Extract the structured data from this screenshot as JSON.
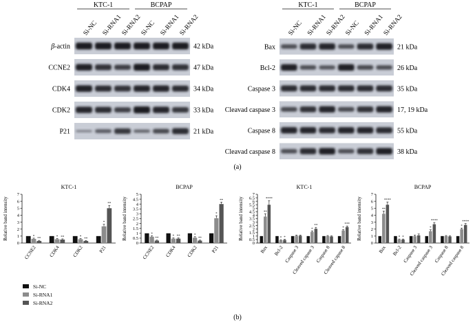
{
  "panel_a": {
    "label": "(a)",
    "left": {
      "groups": [
        "KTC-1",
        "BCPAP"
      ],
      "lanes": [
        "Si-NC",
        "Si-RNA1",
        "Si-RNA2",
        "Si-NC",
        "Si-RNA1",
        "Si-RNA2"
      ],
      "bands": [
        {
          "name": "β-actin",
          "kda": "42 kDa",
          "italic_prefix": true
        },
        {
          "name": "CCNE2",
          "kda": "47 kDa"
        },
        {
          "name": "CDK4",
          "kda": "34 kDa"
        },
        {
          "name": "CDK2",
          "kda": "33 kDa"
        },
        {
          "name": "P21",
          "kda": "21 kDa"
        }
      ]
    },
    "right": {
      "groups": [
        "KTC-1",
        "BCPAP"
      ],
      "lanes": [
        "Si-NC",
        "Si-RNA1",
        "Si-RNA2",
        "Si-NC",
        "Si-RNA1",
        "Si-RNA2"
      ],
      "bands": [
        {
          "name": "Bax",
          "kda": "21 kDa"
        },
        {
          "name": "Bcl-2",
          "kda": "26 kDa"
        },
        {
          "name": "Caspase 3",
          "kda": "35 kDa"
        },
        {
          "name": "Cleavad caspase 3",
          "kda": "17, 19 kDa"
        },
        {
          "name": "Caspase 8",
          "kda": "55 kDa"
        },
        {
          "name": "Cleavad caspase 8",
          "kda": "38 kDa"
        }
      ]
    }
  },
  "panel_b": {
    "label": "(b)",
    "legend": [
      "Si-NC",
      "Si-RNA1",
      "Si-RNA2"
    ]
  },
  "colors": {
    "si_nc": "#111111",
    "si_rna1": "#8c8c8c",
    "si_rna2": "#555555",
    "blot_bg": "#c9cdd6",
    "band": "#1c1c22"
  },
  "chart_data": [
    {
      "type": "bar",
      "title": "KTC-1",
      "ylabel": "Relative band intensity",
      "ylim": [
        0,
        7
      ],
      "yticks": [
        0,
        1,
        2,
        3,
        4,
        5,
        6,
        7
      ],
      "categories": [
        "CCNE2",
        "CDK4",
        "CDK2",
        "P21"
      ],
      "series": [
        {
          "name": "Si-NC",
          "values": [
            1,
            1,
            1,
            1
          ]
        },
        {
          "name": "Si-RNA1",
          "values": [
            0.6,
            0.55,
            0.55,
            2.4
          ]
        },
        {
          "name": "Si-RNA2",
          "values": [
            0.3,
            0.5,
            0.3,
            5.0
          ]
        }
      ],
      "errors": [
        [
          0,
          0,
          0,
          0
        ],
        [
          0.1,
          0.1,
          0.1,
          0.3
        ],
        [
          0.08,
          0.1,
          0.06,
          0.4
        ]
      ],
      "significance": [
        [
          "",
          "",
          "",
          ""
        ],
        [
          "*",
          "*",
          "*",
          "*"
        ],
        [
          "**",
          "**",
          "**",
          "**"
        ]
      ]
    },
    {
      "type": "bar",
      "title": "BCPAP",
      "ylabel": "Relative band intensity",
      "ylim": [
        0,
        5
      ],
      "yticks": [
        0,
        0.5,
        1,
        1.5,
        2,
        2.5,
        3,
        3.5,
        4,
        4.5,
        5
      ],
      "categories": [
        "CCNE2",
        "CDK4",
        "CDK2",
        "P21"
      ],
      "series": [
        {
          "name": "Si-NC",
          "values": [
            1,
            1,
            1,
            1
          ]
        },
        {
          "name": "Si-RNA1",
          "values": [
            0.65,
            0.45,
            0.55,
            2.55
          ]
        },
        {
          "name": "Si-RNA2",
          "values": [
            0.25,
            0.45,
            0.25,
            4.0
          ]
        }
      ],
      "errors": [
        [
          0,
          0,
          0,
          0
        ],
        [
          0.1,
          0.08,
          0.1,
          0.25
        ],
        [
          0.05,
          0.08,
          0.05,
          0.2
        ]
      ],
      "significance": [
        [
          "",
          "",
          "",
          ""
        ],
        [
          "*",
          "*",
          "*",
          "*"
        ],
        [
          "**",
          "**",
          "**",
          "**"
        ]
      ]
    },
    {
      "type": "bar",
      "title": "KTC-1",
      "ylabel": "Relative band intensity",
      "ylim": [
        0,
        7
      ],
      "yticks": [
        0,
        0.5,
        1,
        1.5,
        2,
        2.5,
        3,
        3.5,
        4,
        4.5,
        5,
        5.5,
        6,
        6.5,
        7
      ],
      "categories": [
        "Bax",
        "Bcl-2",
        "Caspase 3",
        "Cleaved capase 3",
        "Caspase 8",
        "Cleaved capase 8"
      ],
      "series": [
        {
          "name": "Si-NC",
          "values": [
            1,
            1,
            1,
            1,
            1,
            1
          ]
        },
        {
          "name": "Si-RNA1",
          "values": [
            3.8,
            0.4,
            1.05,
            1.6,
            1.0,
            1.8
          ]
        },
        {
          "name": "Si-RNA2",
          "values": [
            5.5,
            0.45,
            1.05,
            2.05,
            0.95,
            2.3
          ]
        }
      ],
      "errors": [
        [
          0,
          0,
          0,
          0,
          0,
          0
        ],
        [
          0.4,
          0.08,
          0.1,
          0.15,
          0.08,
          0.12
        ],
        [
          0.6,
          0.08,
          0.1,
          0.2,
          0.08,
          0.15
        ]
      ],
      "significance": [
        [
          "",
          "",
          "",
          "",
          "",
          ""
        ],
        [
          "**",
          "*",
          "",
          "*",
          "",
          "*"
        ],
        [
          "****",
          "*",
          "",
          "**",
          "",
          "***"
        ]
      ]
    },
    {
      "type": "bar",
      "title": "BCPAP",
      "ylabel": "Relative band intensity",
      "ylim": [
        0,
        7
      ],
      "yticks": [
        0,
        1,
        2,
        3,
        4,
        5,
        6,
        7
      ],
      "categories": [
        "Bax",
        "Bcl-2",
        "Caspase 3",
        "Cleaved caspase 3",
        "Caspase 8",
        "Cleaved caspase 8"
      ],
      "series": [
        {
          "name": "Si-NC",
          "values": [
            1,
            1,
            1,
            1,
            1,
            1
          ]
        },
        {
          "name": "Si-RNA1",
          "values": [
            4.2,
            0.5,
            1.0,
            1.7,
            1.0,
            2.0
          ]
        },
        {
          "name": "Si-RNA2",
          "values": [
            5.5,
            0.5,
            1.1,
            2.7,
            0.95,
            2.6
          ]
        }
      ],
      "errors": [
        [
          0,
          0,
          0,
          0,
          0,
          0
        ],
        [
          0.4,
          0.08,
          0.15,
          0.2,
          0.08,
          0.15
        ],
        [
          0.4,
          0.08,
          0.2,
          0.25,
          0.08,
          0.2
        ]
      ],
      "significance": [
        [
          "",
          "",
          "",
          "",
          "",
          ""
        ],
        [
          "**",
          "*",
          "",
          "*",
          "",
          "*"
        ],
        [
          "****",
          "*",
          "",
          "****",
          "",
          "****"
        ]
      ]
    }
  ]
}
